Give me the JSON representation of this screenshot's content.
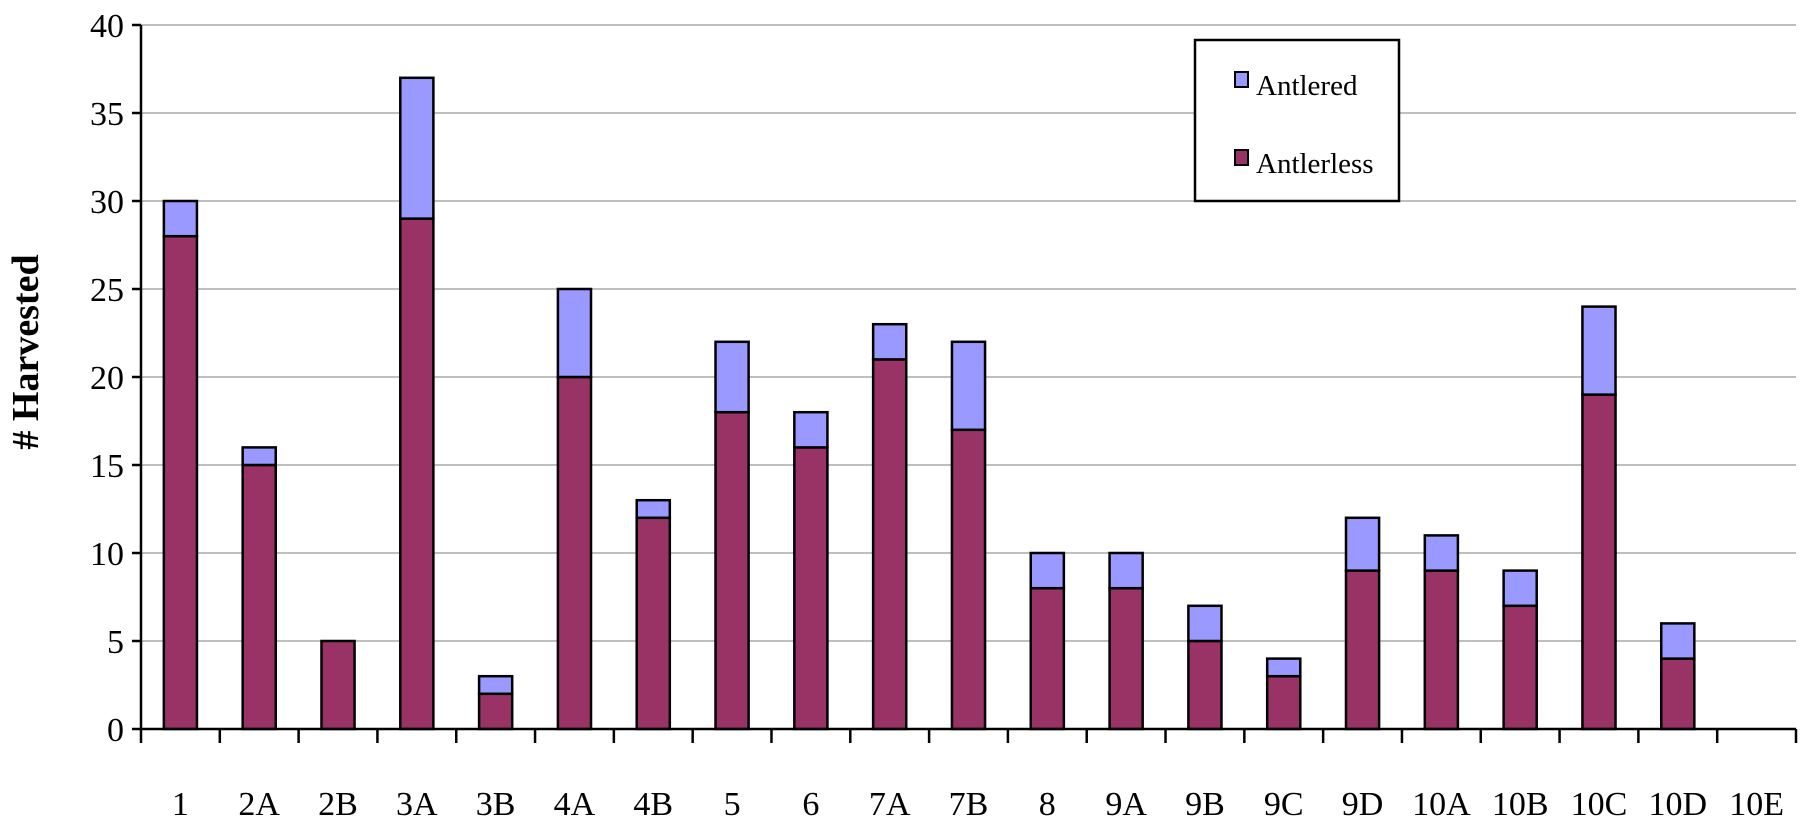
{
  "chart_data": {
    "type": "bar",
    "stacked": true,
    "title": "",
    "xlabel": "",
    "ylabel": "# Harvested",
    "ylim": [
      0,
      40
    ],
    "yticks": [
      0,
      5,
      10,
      15,
      20,
      25,
      30,
      35,
      40
    ],
    "grid": true,
    "legend_position": "top-right",
    "categories": [
      "1",
      "2A",
      "2B",
      "3A",
      "3B",
      "4A",
      "4B",
      "5",
      "6",
      "7A",
      "7B",
      "8",
      "9A",
      "9B",
      "9C",
      "9D",
      "10A",
      "10B",
      "10C",
      "10D",
      "10E"
    ],
    "series": [
      {
        "name": "Antlerless",
        "color": "#993366",
        "values": [
          28,
          15,
          5,
          29,
          2,
          20,
          12,
          18,
          16,
          21,
          17,
          8,
          8,
          5,
          3,
          9,
          9,
          7,
          19,
          4,
          0
        ]
      },
      {
        "name": "Antlered",
        "color": "#9999ff",
        "values": [
          2,
          1,
          0,
          8,
          1,
          5,
          1,
          4,
          2,
          2,
          5,
          2,
          2,
          2,
          1,
          3,
          2,
          2,
          5,
          2,
          0
        ]
      }
    ],
    "legend": [
      "Antlered",
      "Antlerless"
    ]
  }
}
